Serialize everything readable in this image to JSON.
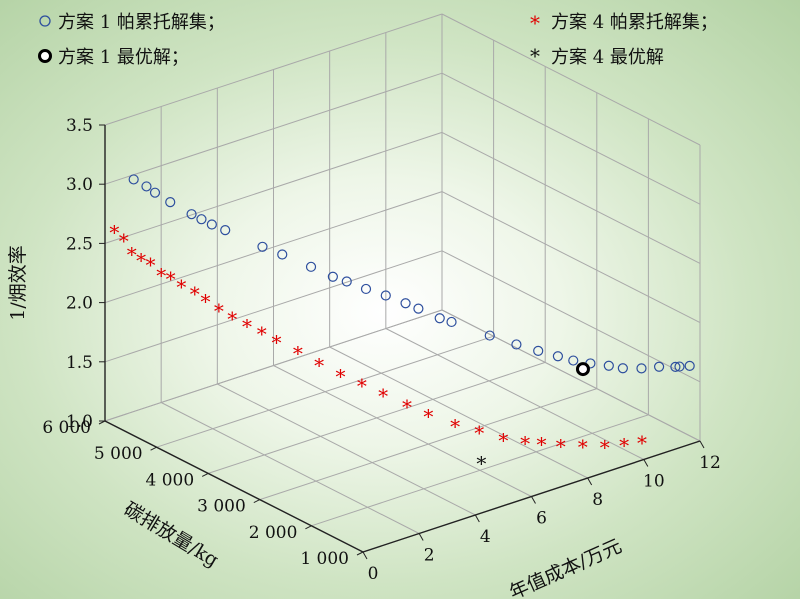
{
  "chart_data": {
    "type": "scatter",
    "projection": "3d",
    "title": "",
    "xlabel": "年值成本/万元",
    "ylabel": "碳排放量/kg",
    "zlabel": "1/㶲效率",
    "xlim": [
      0,
      12
    ],
    "ylim": [
      1000,
      6000
    ],
    "zlim": [
      1.0,
      3.5
    ],
    "x_ticks": [
      "0",
      "2",
      "4",
      "6",
      "8",
      "10",
      "12"
    ],
    "y_ticks": [
      "1 000",
      "2 000",
      "3 000",
      "4 000",
      "5 000",
      "6 000"
    ],
    "z_ticks": [
      "1.0",
      "1.5",
      "2.0",
      "2.5",
      "3.0",
      "3.5"
    ],
    "grid": true,
    "legend_position": "top",
    "series": [
      {
        "name": "方案 1 帕累托解集；",
        "marker": "open-circle",
        "color": "#2e4f9e",
        "points": [
          [
            0.47,
            5700,
            3.07
          ],
          [
            0.65,
            5550,
            3.03
          ],
          [
            0.77,
            5450,
            2.99
          ],
          [
            1.0,
            5280,
            2.93
          ],
          [
            1.3,
            5030,
            2.86
          ],
          [
            1.45,
            4920,
            2.83
          ],
          [
            1.6,
            4800,
            2.8
          ],
          [
            1.8,
            4650,
            2.77
          ],
          [
            2.3,
            4200,
            2.69
          ],
          [
            2.6,
            3980,
            2.65
          ],
          [
            3.0,
            3640,
            2.59
          ],
          [
            3.3,
            3380,
            2.54
          ],
          [
            3.5,
            3220,
            2.52
          ],
          [
            3.8,
            3010,
            2.48
          ],
          [
            4.1,
            2790,
            2.45
          ],
          [
            4.4,
            2570,
            2.41
          ],
          [
            4.6,
            2430,
            2.38
          ],
          [
            4.9,
            2180,
            2.33
          ],
          [
            5.1,
            2060,
            2.31
          ],
          [
            5.8,
            1700,
            2.22
          ],
          [
            6.4,
            1510,
            2.14
          ],
          [
            6.9,
            1360,
            2.08
          ],
          [
            7.4,
            1250,
            2.02
          ],
          [
            7.8,
            1170,
            1.97
          ],
          [
            8.3,
            1110,
            1.92
          ],
          [
            8.9,
            1080,
            1.86
          ],
          [
            9.4,
            1080,
            1.8
          ],
          [
            10.1,
            1100,
            1.74
          ],
          [
            10.8,
            1140,
            1.69
          ],
          [
            11.4,
            1150,
            1.64
          ],
          [
            11.6,
            1180,
            1.62
          ],
          [
            12.0,
            1200,
            1.59
          ]
        ]
      },
      {
        "name": "方案 1 最优解；",
        "marker": "bold-circle",
        "color": "#000000",
        "points": [
          [
            8.2,
            1200,
            1.86
          ]
        ]
      },
      {
        "name": "方案 4 帕累托解集；",
        "marker": "asterisk",
        "color": "#e00000",
        "points": [
          [
            0.15,
            5900,
            2.61
          ],
          [
            0.3,
            5800,
            2.55
          ],
          [
            0.4,
            5700,
            2.45
          ],
          [
            0.55,
            5600,
            2.41
          ],
          [
            0.7,
            5500,
            2.38
          ],
          [
            0.9,
            5400,
            2.3
          ],
          [
            1.05,
            5300,
            2.28
          ],
          [
            1.25,
            5200,
            2.22
          ],
          [
            1.45,
            5050,
            2.18
          ],
          [
            1.65,
            4950,
            2.12
          ],
          [
            1.85,
            4800,
            2.06
          ],
          [
            2.05,
            4650,
            2.01
          ],
          [
            2.3,
            4500,
            1.96
          ],
          [
            2.55,
            4350,
            1.91
          ],
          [
            2.8,
            4200,
            1.85
          ],
          [
            3.1,
            3950,
            1.79
          ],
          [
            3.4,
            3700,
            1.72
          ],
          [
            3.7,
            3450,
            1.66
          ],
          [
            4.0,
            3200,
            1.61
          ],
          [
            4.3,
            2950,
            1.56
          ],
          [
            4.6,
            2650,
            1.51
          ],
          [
            4.9,
            2400,
            1.46
          ],
          [
            5.3,
            2100,
            1.41
          ],
          [
            5.7,
            1850,
            1.38
          ],
          [
            6.1,
            1600,
            1.34
          ],
          [
            6.6,
            1450,
            1.31
          ],
          [
            7.0,
            1350,
            1.29
          ],
          [
            7.5,
            1250,
            1.26
          ],
          [
            8.1,
            1150,
            1.23
          ],
          [
            8.7,
            1050,
            1.2
          ],
          [
            9.3,
            1000,
            1.18
          ],
          [
            9.9,
            980,
            1.16
          ]
        ]
      },
      {
        "name": "方案 4 最优解",
        "marker": "asterisk",
        "color": "#111111",
        "points": [
          [
            5.5,
            1700,
            1.17
          ]
        ]
      }
    ]
  }
}
